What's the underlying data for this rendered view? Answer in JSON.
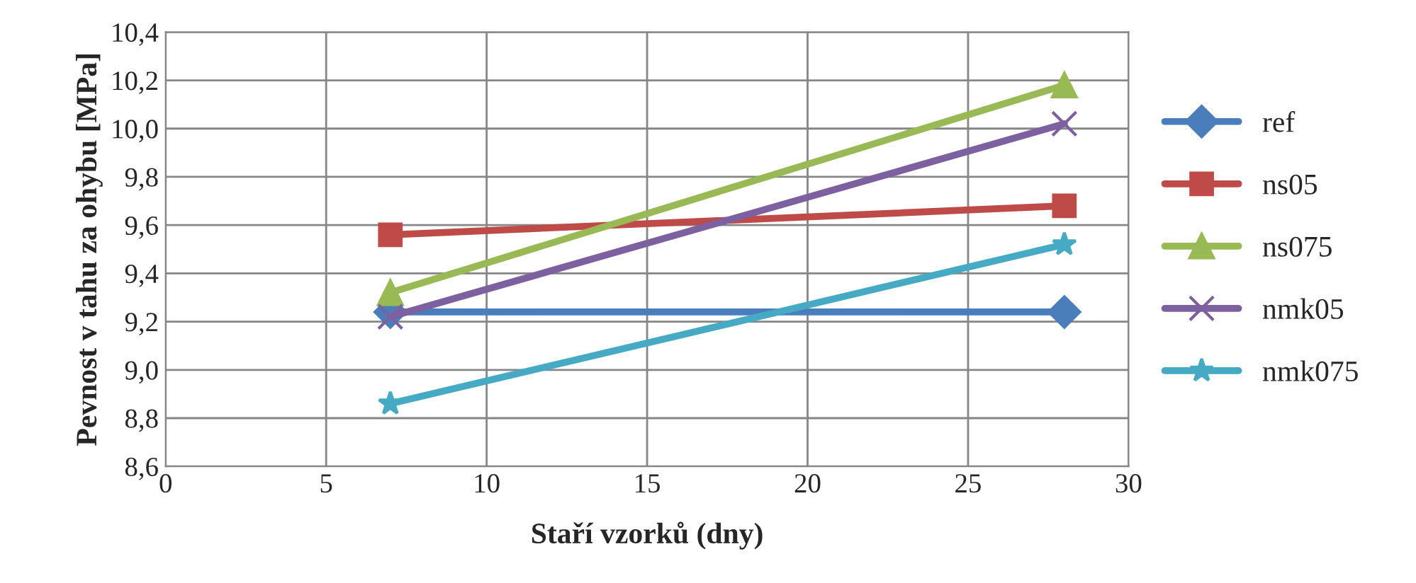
{
  "chart_data": {
    "type": "line",
    "xlabel": "Staří vzorků (dny)",
    "ylabel": "Pevnost v tahu za ohybu [MPa]",
    "xlim": [
      0,
      30
    ],
    "xticks": [
      0,
      5,
      10,
      15,
      20,
      25,
      30
    ],
    "ylim": [
      8.6,
      10.4
    ],
    "yticks": [
      {
        "value": 8.6,
        "label": "8,6"
      },
      {
        "value": 8.8,
        "label": "8,8"
      },
      {
        "value": 9.0,
        "label": "9,0"
      },
      {
        "value": 9.2,
        "label": "9,2"
      },
      {
        "value": 9.4,
        "label": "9,4"
      },
      {
        "value": 9.6,
        "label": "9,6"
      },
      {
        "value": 9.8,
        "label": "9,8"
      },
      {
        "value": 10.0,
        "label": "10,0"
      },
      {
        "value": 10.2,
        "label": "10,2"
      },
      {
        "value": 10.4,
        "label": "10,4"
      }
    ],
    "grid": true,
    "legend": "right",
    "x": [
      7,
      28
    ],
    "series": [
      {
        "name": "ref",
        "color": "#4a7ebb",
        "marker": "diamond",
        "values": [
          9.24,
          9.24
        ]
      },
      {
        "name": "ns05",
        "color": "#be4b48",
        "marker": "square",
        "values": [
          9.56,
          9.68
        ]
      },
      {
        "name": "ns075",
        "color": "#98b954",
        "marker": "triangle",
        "values": [
          9.32,
          10.18
        ]
      },
      {
        "name": "nmk05",
        "color": "#7d60a0",
        "marker": "cross",
        "values": [
          9.22,
          10.02
        ]
      },
      {
        "name": "nmk075",
        "color": "#46aac5",
        "marker": "star",
        "values": [
          8.86,
          9.52
        ]
      }
    ]
  }
}
